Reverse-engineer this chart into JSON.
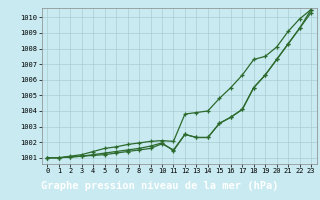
{
  "title": "Graphe pression niveau de la mer (hPa)",
  "x_ticks": [
    0,
    1,
    2,
    3,
    4,
    5,
    6,
    7,
    8,
    9,
    10,
    11,
    12,
    13,
    14,
    15,
    16,
    17,
    18,
    19,
    20,
    21,
    22,
    23
  ],
  "ylim": [
    1000.6,
    1010.6
  ],
  "yticks": [
    1001,
    1002,
    1003,
    1004,
    1005,
    1006,
    1007,
    1008,
    1009,
    1010
  ],
  "line1": [
    1001.0,
    1001.0,
    1001.05,
    1001.1,
    1001.15,
    1001.2,
    1001.3,
    1001.4,
    1001.5,
    1001.6,
    1001.9,
    1001.5,
    1002.5,
    1002.3,
    1002.3,
    1003.2,
    1003.6,
    1004.1,
    1005.5,
    1006.3,
    1007.3,
    1008.3,
    1009.3,
    1010.3
  ],
  "line2": [
    1001.0,
    1001.0,
    1001.05,
    1001.1,
    1001.2,
    1001.3,
    1001.4,
    1001.5,
    1001.6,
    1001.75,
    1001.95,
    1001.45,
    1002.5,
    1002.3,
    1002.3,
    1003.2,
    1003.6,
    1004.1,
    1005.5,
    1006.3,
    1007.3,
    1008.3,
    1009.3,
    1010.5
  ],
  "line3": [
    1001.0,
    1001.0,
    1001.1,
    1001.2,
    1001.4,
    1001.6,
    1001.7,
    1001.85,
    1001.95,
    1002.05,
    1002.1,
    1002.05,
    1003.8,
    1003.9,
    1004.0,
    1004.8,
    1005.5,
    1006.3,
    1007.3,
    1007.5,
    1008.1,
    1009.1,
    1009.9,
    1010.5
  ],
  "line_color": "#2d6a2d",
  "bg_color": "#c8eaf0",
  "grid_color": "#aaccd4",
  "title_bg": "#2d6a2d",
  "title_fg": "#ffffff",
  "title_fontsize": 7.5,
  "tick_fontsize": 5.0
}
